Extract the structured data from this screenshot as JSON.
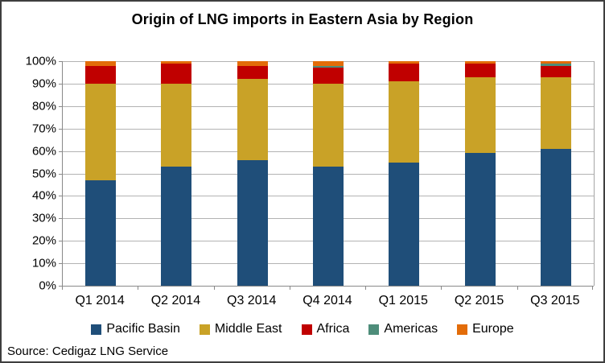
{
  "chart_data": {
    "type": "bar",
    "subtype": "stacked-100-percent",
    "title": "Origin of LNG imports in Eastern Asia by Region",
    "categories": [
      "Q1 2014",
      "Q2 2014",
      "Q3 2014",
      "Q4 2014",
      "Q1 2015",
      "Q2 2015",
      "Q3 2015"
    ],
    "series": [
      {
        "name": "Pacific Basin",
        "color": "#1F4E79",
        "values": [
          47,
          53,
          56,
          53,
          55,
          59,
          61
        ]
      },
      {
        "name": "Middle East",
        "color": "#C9A227",
        "values": [
          43,
          37,
          36,
          37,
          36,
          34,
          32
        ]
      },
      {
        "name": "Africa",
        "color": "#C00000",
        "values": [
          8,
          9,
          6,
          7,
          8,
          6,
          5
        ]
      },
      {
        "name": "Americas",
        "color": "#4E8D7A",
        "values": [
          0,
          0,
          0,
          1,
          0,
          0,
          1
        ]
      },
      {
        "name": "Europe",
        "color": "#E36C09",
        "values": [
          2,
          1,
          2,
          2,
          1,
          1,
          1
        ]
      }
    ],
    "y_ticks": [
      "100%",
      "90%",
      "80%",
      "70%",
      "60%",
      "50%",
      "40%",
      "30%",
      "20%",
      "10%",
      "0%"
    ],
    "ylim": [
      0,
      100
    ],
    "unit": "%",
    "grid": true,
    "legend_position": "bottom"
  },
  "source_note": "Source: Cedigaz LNG Service"
}
